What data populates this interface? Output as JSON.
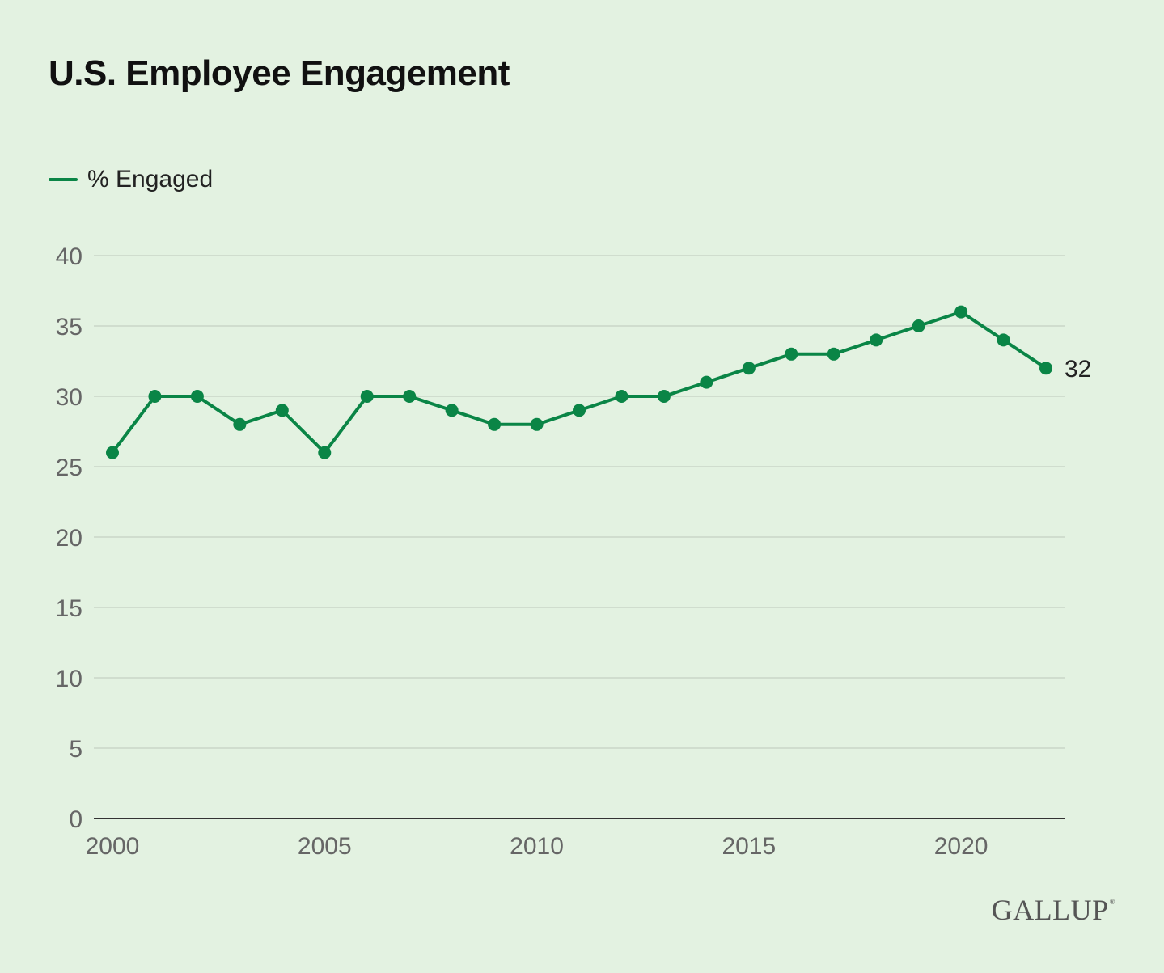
{
  "chart_data": {
    "type": "line",
    "title": "U.S. Employee Engagement",
    "xlabel": "",
    "ylabel": "",
    "xlim": [
      2000,
      2022
    ],
    "ylim": [
      0,
      40
    ],
    "x_ticks": [
      2000,
      2005,
      2010,
      2015,
      2020
    ],
    "y_ticks": [
      0,
      5,
      10,
      15,
      20,
      25,
      30,
      35,
      40
    ],
    "grid": true,
    "legend_position": "top-left",
    "x": [
      2000,
      2001,
      2002,
      2003,
      2004,
      2005,
      2006,
      2007,
      2008,
      2009,
      2010,
      2011,
      2012,
      2013,
      2014,
      2015,
      2016,
      2017,
      2018,
      2019,
      2020,
      2021,
      2022
    ],
    "series": [
      {
        "name": "% Engaged",
        "color": "#0a8546",
        "values": [
          26,
          30,
          30,
          28,
          29,
          26,
          30,
          30,
          29,
          28,
          28,
          29,
          30,
          30,
          31,
          32,
          33,
          33,
          34,
          35,
          36,
          34,
          32
        ],
        "end_label": "32"
      }
    ]
  },
  "branding": {
    "logo_text": "GALLUP",
    "logo_mark": "®"
  }
}
